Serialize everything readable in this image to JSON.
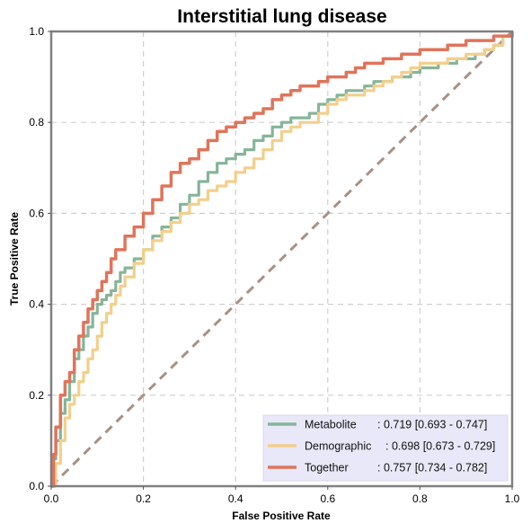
{
  "chart_data": {
    "type": "line",
    "title": "Interstitial lung disease",
    "xlabel": "False Positive Rate",
    "ylabel": "True Positive Rate",
    "xlim": [
      0.0,
      1.0
    ],
    "ylim": [
      0.0,
      1.0
    ],
    "x_ticks": [
      "0.0",
      "0.2",
      "0.4",
      "0.6",
      "0.8",
      "1.0"
    ],
    "y_ticks": [
      "0.0",
      "0.2",
      "0.4",
      "0.6",
      "0.8",
      "1.0"
    ],
    "grid": true,
    "legend_position": "bottom-right",
    "diagonal": {
      "x": [
        0,
        1
      ],
      "y": [
        0,
        1
      ],
      "color": "#a89184",
      "style": "dashed"
    },
    "series": [
      {
        "name": "Metabolite",
        "auc_text": ": 0.719 [0.693 - 0.747]",
        "color": "#86b59a",
        "x": [
          0,
          0.005,
          0.01,
          0.02,
          0.03,
          0.04,
          0.05,
          0.06,
          0.07,
          0.08,
          0.09,
          0.1,
          0.11,
          0.12,
          0.13,
          0.14,
          0.15,
          0.16,
          0.18,
          0.2,
          0.22,
          0.24,
          0.26,
          0.28,
          0.3,
          0.32,
          0.34,
          0.36,
          0.38,
          0.4,
          0.42,
          0.44,
          0.46,
          0.48,
          0.5,
          0.52,
          0.54,
          0.56,
          0.58,
          0.6,
          0.62,
          0.64,
          0.66,
          0.68,
          0.7,
          0.72,
          0.74,
          0.76,
          0.78,
          0.8,
          0.82,
          0.84,
          0.86,
          0.88,
          0.9,
          0.92,
          0.94,
          0.96,
          0.98,
          1.0
        ],
        "y": [
          0,
          0.06,
          0.1,
          0.16,
          0.19,
          0.23,
          0.28,
          0.3,
          0.33,
          0.35,
          0.38,
          0.4,
          0.41,
          0.42,
          0.43,
          0.45,
          0.47,
          0.48,
          0.5,
          0.52,
          0.55,
          0.57,
          0.59,
          0.62,
          0.64,
          0.67,
          0.69,
          0.71,
          0.72,
          0.73,
          0.74,
          0.76,
          0.77,
          0.79,
          0.8,
          0.81,
          0.81,
          0.82,
          0.84,
          0.85,
          0.86,
          0.87,
          0.87,
          0.88,
          0.89,
          0.89,
          0.9,
          0.9,
          0.91,
          0.92,
          0.92,
          0.93,
          0.93,
          0.94,
          0.94,
          0.95,
          0.96,
          0.97,
          0.99,
          1.0
        ]
      },
      {
        "name": "Demographic",
        "auc_text": ": 0.698 [0.673 - 0.729]",
        "color": "#f3cf8b",
        "x": [
          0,
          0.01,
          0.02,
          0.03,
          0.04,
          0.05,
          0.06,
          0.07,
          0.08,
          0.09,
          0.1,
          0.11,
          0.12,
          0.13,
          0.14,
          0.15,
          0.16,
          0.18,
          0.2,
          0.22,
          0.24,
          0.26,
          0.28,
          0.3,
          0.32,
          0.34,
          0.36,
          0.38,
          0.4,
          0.42,
          0.44,
          0.46,
          0.48,
          0.5,
          0.52,
          0.54,
          0.56,
          0.58,
          0.6,
          0.62,
          0.64,
          0.66,
          0.68,
          0.7,
          0.72,
          0.74,
          0.76,
          0.78,
          0.8,
          0.82,
          0.84,
          0.86,
          0.88,
          0.9,
          0.92,
          0.94,
          0.96,
          0.98,
          1.0
        ],
        "y": [
          0,
          0.05,
          0.1,
          0.15,
          0.18,
          0.2,
          0.23,
          0.25,
          0.28,
          0.3,
          0.33,
          0.36,
          0.38,
          0.4,
          0.42,
          0.44,
          0.46,
          0.49,
          0.52,
          0.54,
          0.56,
          0.58,
          0.6,
          0.62,
          0.63,
          0.65,
          0.66,
          0.67,
          0.69,
          0.7,
          0.72,
          0.74,
          0.76,
          0.78,
          0.79,
          0.8,
          0.8,
          0.82,
          0.84,
          0.85,
          0.86,
          0.86,
          0.87,
          0.88,
          0.89,
          0.9,
          0.91,
          0.92,
          0.93,
          0.93,
          0.93,
          0.94,
          0.94,
          0.95,
          0.95,
          0.96,
          0.97,
          0.99,
          1.0
        ]
      },
      {
        "name": "Together",
        "auc_text": ": 0.757 [0.734 - 0.782]",
        "color": "#e0745a",
        "x": [
          0,
          0.005,
          0.01,
          0.02,
          0.03,
          0.04,
          0.05,
          0.06,
          0.07,
          0.08,
          0.09,
          0.1,
          0.11,
          0.12,
          0.13,
          0.14,
          0.16,
          0.18,
          0.2,
          0.22,
          0.24,
          0.26,
          0.28,
          0.3,
          0.32,
          0.34,
          0.36,
          0.38,
          0.4,
          0.42,
          0.44,
          0.46,
          0.48,
          0.5,
          0.52,
          0.54,
          0.56,
          0.58,
          0.6,
          0.62,
          0.64,
          0.66,
          0.68,
          0.7,
          0.72,
          0.74,
          0.76,
          0.78,
          0.8,
          0.82,
          0.84,
          0.86,
          0.88,
          0.9,
          0.92,
          0.94,
          0.96,
          0.98,
          1.0
        ],
        "y": [
          0,
          0.07,
          0.13,
          0.2,
          0.23,
          0.25,
          0.3,
          0.33,
          0.36,
          0.39,
          0.41,
          0.43,
          0.45,
          0.47,
          0.5,
          0.52,
          0.55,
          0.57,
          0.6,
          0.63,
          0.66,
          0.69,
          0.71,
          0.72,
          0.74,
          0.76,
          0.78,
          0.79,
          0.8,
          0.81,
          0.82,
          0.83,
          0.85,
          0.86,
          0.87,
          0.88,
          0.88,
          0.89,
          0.9,
          0.9,
          0.91,
          0.92,
          0.93,
          0.93,
          0.94,
          0.94,
          0.95,
          0.95,
          0.96,
          0.96,
          0.96,
          0.97,
          0.97,
          0.98,
          0.98,
          0.98,
          0.99,
          0.99,
          1.0
        ]
      }
    ]
  }
}
